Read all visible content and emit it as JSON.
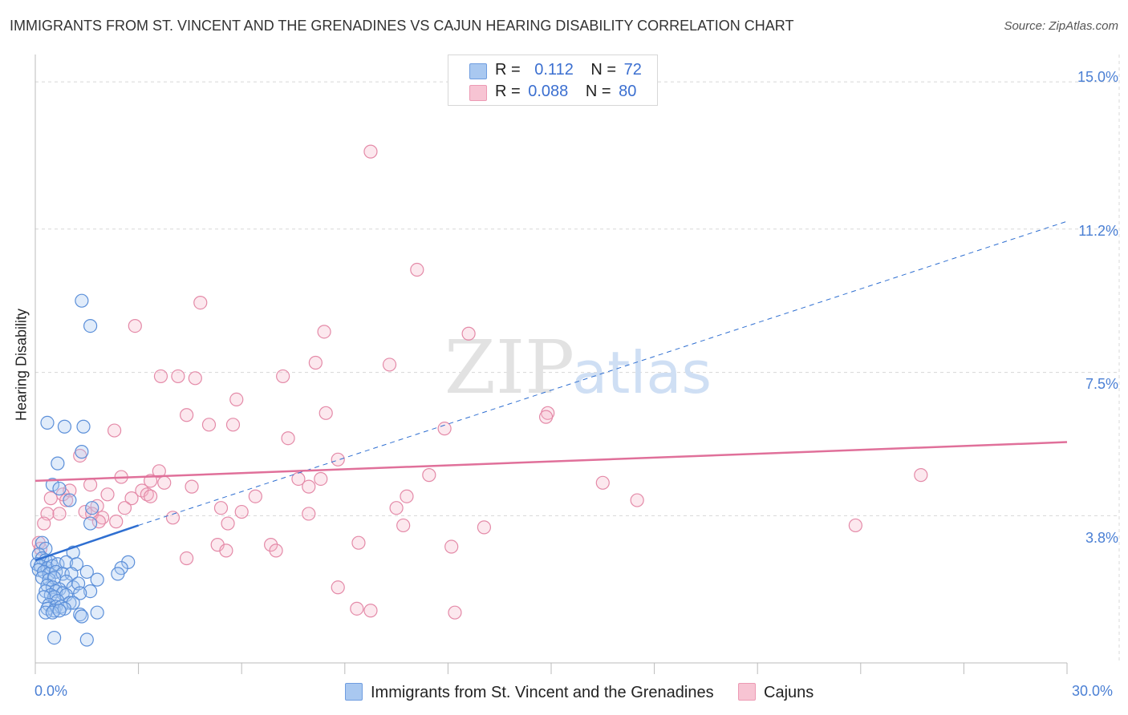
{
  "title": "IMMIGRANTS FROM ST. VINCENT AND THE GRENADINES VS CAJUN HEARING DISABILITY CORRELATION CHART",
  "source": "Source: ZipAtlas.com",
  "watermark": {
    "zip": "ZIP",
    "atlas": "atlas"
  },
  "legend": {
    "r_label": "R =",
    "n_label": "N =",
    "rows": [
      {
        "r": "0.112",
        "n": "72",
        "color": "#a9c8f0",
        "border": "#6f9de0"
      },
      {
        "r": "0.088",
        "n": "80",
        "color": "#f7c4d3",
        "border": "#ec9ab4"
      }
    ]
  },
  "colors": {
    "blue_fill": "rgba(170,200,240,0.35)",
    "blue_stroke": "#5b8fd9",
    "pink_fill": "rgba(245,180,200,0.30)",
    "pink_stroke": "#e48aa8",
    "blue_line": "#2f6fd1",
    "pink_line": "#e0709a",
    "grid": "#d8d8d8",
    "tick_text": "#4a7fd4"
  },
  "chart_data": {
    "type": "scatter",
    "title": "IMMIGRANTS FROM ST. VINCENT AND THE GRENADINES VS CAJUN HEARING DISABILITY CORRELATION CHART",
    "xlabel": "",
    "ylabel": "Hearing Disability",
    "xlim": [
      0,
      30
    ],
    "ylim": [
      0,
      15.5
    ],
    "y_ticks": [
      3.8,
      7.5,
      11.2,
      15.0
    ],
    "y_tick_labels": [
      "3.8%",
      "7.5%",
      "11.2%",
      "15.0%"
    ],
    "x_tick_labels": [
      "0.0%",
      "30.0%"
    ],
    "grid": true,
    "legend_position": "top-center",
    "series": [
      {
        "name": "Immigrants from St. Vincent and the Grenadines",
        "r": 0.112,
        "n": 72,
        "trend": {
          "x0": 0,
          "y0": 2.65,
          "x1": 3.0,
          "y1": 3.55,
          "dash_to_x": 30,
          "dash_to_y": 11.4
        },
        "points": [
          [
            1.35,
            9.35
          ],
          [
            1.6,
            8.7
          ],
          [
            0.35,
            6.2
          ],
          [
            0.85,
            6.1
          ],
          [
            1.4,
            6.1
          ],
          [
            1.35,
            5.45
          ],
          [
            0.65,
            5.15
          ],
          [
            0.5,
            4.6
          ],
          [
            0.7,
            4.5
          ],
          [
            1.0,
            4.2
          ],
          [
            1.65,
            4.0
          ],
          [
            1.6,
            3.6
          ],
          [
            0.2,
            3.1
          ],
          [
            0.3,
            2.95
          ],
          [
            1.1,
            2.85
          ],
          [
            0.1,
            2.8
          ],
          [
            0.2,
            2.7
          ],
          [
            0.3,
            2.65
          ],
          [
            0.45,
            2.6
          ],
          [
            0.05,
            2.55
          ],
          [
            0.15,
            2.5
          ],
          [
            0.35,
            2.45
          ],
          [
            0.5,
            2.5
          ],
          [
            0.65,
            2.55
          ],
          [
            0.9,
            2.6
          ],
          [
            1.2,
            2.55
          ],
          [
            2.7,
            2.6
          ],
          [
            2.5,
            2.45
          ],
          [
            0.1,
            2.4
          ],
          [
            0.25,
            2.35
          ],
          [
            0.4,
            2.3
          ],
          [
            0.6,
            2.35
          ],
          [
            0.8,
            2.3
          ],
          [
            1.05,
            2.3
          ],
          [
            1.5,
            2.35
          ],
          [
            2.4,
            2.3
          ],
          [
            0.2,
            2.2
          ],
          [
            0.4,
            2.15
          ],
          [
            0.55,
            2.2
          ],
          [
            0.9,
            2.1
          ],
          [
            1.8,
            2.15
          ],
          [
            0.35,
            2.0
          ],
          [
            0.5,
            1.95
          ],
          [
            0.7,
            1.9
          ],
          [
            1.1,
            1.95
          ],
          [
            1.25,
            2.05
          ],
          [
            0.3,
            1.85
          ],
          [
            0.6,
            1.85
          ],
          [
            0.8,
            1.8
          ],
          [
            1.6,
            1.85
          ],
          [
            0.45,
            1.75
          ],
          [
            0.55,
            1.7
          ],
          [
            0.9,
            1.75
          ],
          [
            1.3,
            1.8
          ],
          [
            0.25,
            1.7
          ],
          [
            0.65,
            1.6
          ],
          [
            1.0,
            1.55
          ],
          [
            1.1,
            1.55
          ],
          [
            0.4,
            1.5
          ],
          [
            0.6,
            1.45
          ],
          [
            0.35,
            1.4
          ],
          [
            0.55,
            1.35
          ],
          [
            0.75,
            1.45
          ],
          [
            0.85,
            1.4
          ],
          [
            0.3,
            1.3
          ],
          [
            0.5,
            1.3
          ],
          [
            1.3,
            1.25
          ],
          [
            1.8,
            1.3
          ],
          [
            0.7,
            1.35
          ],
          [
            1.35,
            1.2
          ],
          [
            0.55,
            0.65
          ],
          [
            1.5,
            0.6
          ]
        ]
      },
      {
        "name": "Cajuns",
        "r": 0.088,
        "n": 80,
        "trend": {
          "x0": 0,
          "y0": 4.7,
          "x1": 30,
          "y1": 5.7
        },
        "points": [
          [
            9.75,
            13.2
          ],
          [
            11.1,
            10.15
          ],
          [
            4.8,
            9.3
          ],
          [
            2.9,
            8.7
          ],
          [
            8.4,
            8.55
          ],
          [
            12.6,
            8.5
          ],
          [
            8.15,
            7.75
          ],
          [
            10.3,
            7.7
          ],
          [
            3.65,
            7.4
          ],
          [
            4.15,
            7.4
          ],
          [
            4.65,
            7.35
          ],
          [
            7.2,
            7.4
          ],
          [
            5.85,
            6.8
          ],
          [
            14.9,
            6.45
          ],
          [
            8.45,
            6.45
          ],
          [
            4.4,
            6.4
          ],
          [
            14.85,
            6.35
          ],
          [
            5.05,
            6.15
          ],
          [
            5.75,
            6.15
          ],
          [
            11.9,
            6.05
          ],
          [
            2.3,
            6.0
          ],
          [
            7.35,
            5.8
          ],
          [
            1.3,
            5.35
          ],
          [
            8.8,
            5.25
          ],
          [
            3.6,
            4.95
          ],
          [
            2.5,
            4.8
          ],
          [
            11.45,
            4.85
          ],
          [
            25.75,
            4.85
          ],
          [
            7.65,
            4.75
          ],
          [
            8.3,
            4.75
          ],
          [
            3.35,
            4.7
          ],
          [
            3.75,
            4.65
          ],
          [
            16.5,
            4.65
          ],
          [
            1.6,
            4.6
          ],
          [
            4.55,
            4.55
          ],
          [
            7.95,
            4.55
          ],
          [
            1.0,
            4.45
          ],
          [
            3.1,
            4.45
          ],
          [
            0.8,
            4.35
          ],
          [
            2.1,
            4.35
          ],
          [
            3.25,
            4.35
          ],
          [
            3.35,
            4.3
          ],
          [
            6.4,
            4.3
          ],
          [
            10.8,
            4.3
          ],
          [
            0.45,
            4.25
          ],
          [
            2.8,
            4.25
          ],
          [
            0.9,
            4.2
          ],
          [
            17.5,
            4.2
          ],
          [
            1.8,
            4.05
          ],
          [
            5.4,
            4.0
          ],
          [
            10.5,
            4.0
          ],
          [
            2.6,
            4.0
          ],
          [
            1.45,
            3.9
          ],
          [
            1.65,
            3.85
          ],
          [
            0.35,
            3.85
          ],
          [
            0.7,
            3.85
          ],
          [
            6.0,
            3.9
          ],
          [
            7.95,
            3.85
          ],
          [
            1.95,
            3.75
          ],
          [
            4.0,
            3.75
          ],
          [
            1.85,
            3.65
          ],
          [
            2.35,
            3.65
          ],
          [
            5.6,
            3.6
          ],
          [
            10.7,
            3.55
          ],
          [
            13.05,
            3.5
          ],
          [
            23.85,
            3.55
          ],
          [
            0.25,
            3.6
          ],
          [
            0.1,
            3.1
          ],
          [
            9.4,
            3.1
          ],
          [
            5.3,
            3.05
          ],
          [
            6.85,
            3.05
          ],
          [
            12.1,
            3.0
          ],
          [
            5.55,
            2.9
          ],
          [
            7.0,
            2.9
          ],
          [
            4.4,
            2.7
          ],
          [
            8.8,
            1.95
          ],
          [
            9.35,
            1.4
          ],
          [
            9.75,
            1.35
          ],
          [
            12.2,
            1.3
          ],
          [
            0.15,
            2.95
          ]
        ]
      }
    ]
  }
}
